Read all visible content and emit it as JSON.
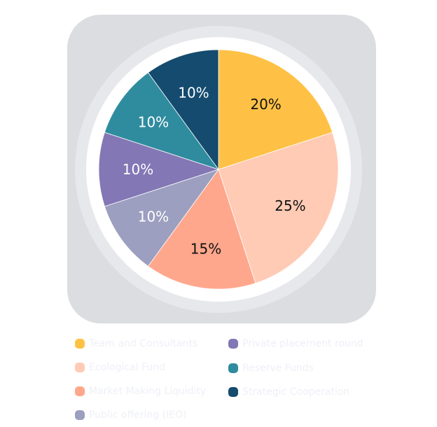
{
  "chart_data": {
    "type": "pie",
    "slices": [
      {
        "label": "Team and Consultants",
        "value": 20,
        "value_label": "20%",
        "color": "#ffc145",
        "text_color": "#111111"
      },
      {
        "label": "Ecological Fund",
        "value": 25,
        "value_label": "25%",
        "color": "#ffcbb5",
        "text_color": "#111111"
      },
      {
        "label": "Market Making Liquidity",
        "value": 15,
        "value_label": "15%",
        "color": "#ffa78c",
        "text_color": "#111111"
      },
      {
        "label": "Public offering (IEO)",
        "value": 10,
        "value_label": "10%",
        "color": "#9c9fbf",
        "text_color": "#ffffff"
      },
      {
        "label": "Private placement round",
        "value": 10,
        "value_label": "10%",
        "color": "#8377b5",
        "text_color": "#ffffff"
      },
      {
        "label": "Reserve Funds",
        "value": 10,
        "value_label": "10%",
        "color": "#2f8c9e",
        "text_color": "#ffffff"
      },
      {
        "label": "Strategic Cooperation",
        "value": 10,
        "value_label": "10%",
        "color": "#144b6e",
        "text_color": "#ffffff"
      }
    ],
    "start_angle": "top",
    "direction": "clockwise",
    "legend_position": "bottom",
    "card_color": "#dcdde1",
    "ring_colors": [
      "#e7e8ec",
      "#ffffff"
    ]
  }
}
